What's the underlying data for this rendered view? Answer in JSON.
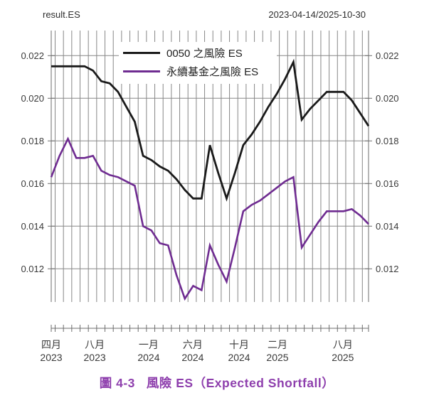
{
  "header": {
    "title": "result.ES",
    "date_range": "2023-04-14/2025-10-30"
  },
  "caption": {
    "label": "圖 4-3",
    "title": "風險 ES（Expected Shortfall）"
  },
  "colors": {
    "series_black": "#1a1a1a",
    "series_purple": "#6f2c91",
    "caption_purple": "#8e3fad",
    "grid": "#878787",
    "axis": "#6e6e6e",
    "tick_text": "#3a3a3a"
  },
  "chart_data": {
    "type": "line",
    "title": "result.ES",
    "date_range": "2023-04-14/2025-10-30",
    "xlabel": "",
    "ylabel": "",
    "ylim": [
      0.0104,
      0.0232
    ],
    "grid": "on",
    "legend_position": "top-inside",
    "y_ticks": [
      0.022,
      0.02,
      0.018,
      0.016,
      0.014,
      0.012
    ],
    "x_ticks": [
      {
        "month": "四月",
        "year": "2023",
        "pos": 0.0
      },
      {
        "month": "八月",
        "year": "2023",
        "pos": 0.137
      },
      {
        "month": "一月",
        "year": "2024",
        "pos": 0.307
      },
      {
        "month": "六月",
        "year": "2024",
        "pos": 0.446
      },
      {
        "month": "十月",
        "year": "2024",
        "pos": 0.592
      },
      {
        "month": "二月",
        "year": "2025",
        "pos": 0.713
      },
      {
        "month": "八月",
        "year": "2025",
        "pos": 0.919
      }
    ],
    "series": [
      {
        "name": "0050 之風險 ES",
        "color": "#1a1a1a",
        "values": [
          0.0215,
          0.0215,
          0.0215,
          0.0215,
          0.0215,
          0.0213,
          0.0208,
          0.0207,
          0.0203,
          0.0196,
          0.0189,
          0.0173,
          0.0171,
          0.0168,
          0.0166,
          0.0162,
          0.0157,
          0.0153,
          0.0153,
          0.0178,
          0.0165,
          0.0153,
          0.0165,
          0.0178,
          0.0183,
          0.0189,
          0.0196,
          0.0202,
          0.0209,
          0.0217,
          0.019,
          0.0195,
          0.0199,
          0.0203,
          0.0203,
          0.0203,
          0.0199,
          0.0193,
          0.0187
        ]
      },
      {
        "name": "永續基金之風險 ES",
        "color": "#6f2c91",
        "values": [
          0.0163,
          0.0173,
          0.0181,
          0.0172,
          0.0172,
          0.0173,
          0.0166,
          0.0164,
          0.0163,
          0.0161,
          0.0159,
          0.014,
          0.0138,
          0.0132,
          0.0131,
          0.0117,
          0.0106,
          0.0112,
          0.011,
          0.0131,
          0.0122,
          0.0114,
          0.013,
          0.0147,
          0.015,
          0.0152,
          0.0155,
          0.0158,
          0.0161,
          0.0163,
          0.013,
          0.0136,
          0.0142,
          0.0147,
          0.0147,
          0.0147,
          0.0148,
          0.0145,
          0.0141
        ]
      }
    ]
  }
}
